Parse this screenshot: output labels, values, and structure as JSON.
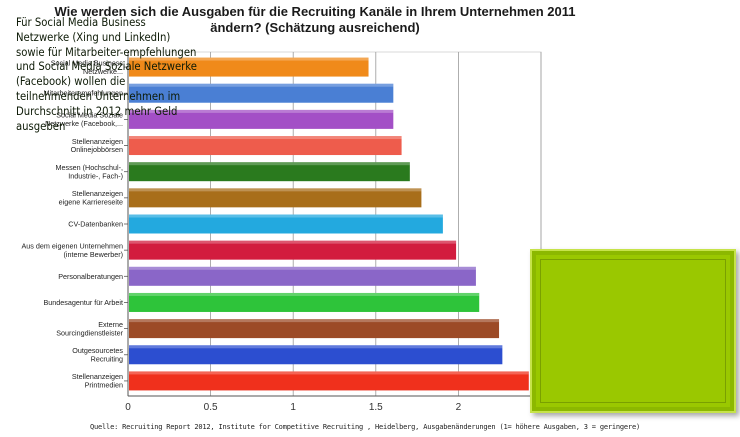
{
  "chart_data": {
    "type": "bar",
    "orientation": "horizontal",
    "title_lines": [
      "Wie werden sich die Ausgaben für die Recruiting Kanäle in  Ihrem Unternehmen 2011",
      "ändern? (Schätzung ausreichend)"
    ],
    "categories": [
      [
        "Social Media Business",
        "Netzwerke..."
      ],
      [
        "Mitarbeiterempfehlungen"
      ],
      [
        "Social Media Soziale",
        "Netzwerke (Facebook,..."
      ],
      [
        "Stellenanzeigen",
        "Onlinejobbörsen"
      ],
      [
        "Messen (Hochschul-,",
        "Industrie-, Fach-)"
      ],
      [
        "Stellenanzeigen",
        "eigene Karriereseite"
      ],
      [
        "CV-Datenbanken"
      ],
      [
        "Aus dem eigenen Unternehmen",
        "(interne Bewerber)"
      ],
      [
        "Personalberatungen"
      ],
      [
        "Bundesagentur für Arbeit"
      ],
      [
        "Externe",
        "Sourcingdienstleister"
      ],
      [
        "Outgesourcetes",
        "Recruiting"
      ],
      [
        "Stellenanzeigen",
        "Printmedien"
      ]
    ],
    "values": [
      1.45,
      1.6,
      1.6,
      1.65,
      1.7,
      1.77,
      1.9,
      1.98,
      2.1,
      2.12,
      2.24,
      2.26,
      2.42
    ],
    "colors": [
      "#f08a1a",
      "#4a7fd4",
      "#a34fc6",
      "#ee5c4c",
      "#2a7a1e",
      "#a86e1a",
      "#23a9df",
      "#d21c3e",
      "#8a66c8",
      "#2ec43a",
      "#9c4a26",
      "#2c4ed0",
      "#f0301c"
    ],
    "xlim": [
      0,
      2.5
    ],
    "x_ticks": [
      "0",
      "0.5",
      "1",
      "1.5",
      "2",
      "2.5"
    ],
    "grid": true
  },
  "callout": {
    "text": "Für Social Media Business Netzwerke  (Xing und LinkedIn) sowie für Mitarbeiter-empfehlungen und Social Media Soziale Netzwerke (Facebook) wollen die teilnehmenden Unternehmen im Durchschnitt in 2012 mehr Geld ausgeben"
  },
  "source": "Quelle: Recruiting Report 2012, Institute for Competitive Recruiting , Heidelberg, Ausgabenänderungen (1= höhere Ausgaben, 3 = geringere)"
}
